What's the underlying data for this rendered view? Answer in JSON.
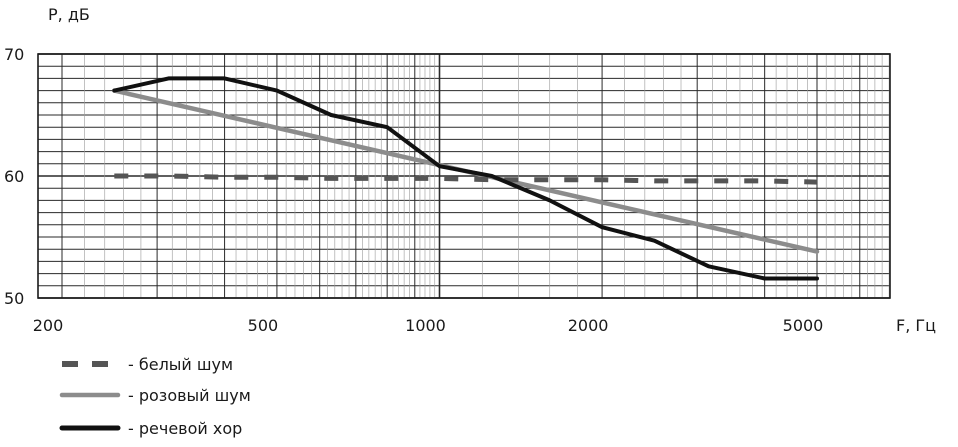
{
  "chart_data": {
    "type": "line",
    "xscale": "log",
    "xlim": [
      200,
      7000
    ],
    "ylim": [
      50,
      70
    ],
    "grid": true,
    "legend_position": "bottom-left",
    "ylabel": "P, дБ",
    "xlabel": "F, Гц",
    "y_ticks": [
      {
        "value": 50,
        "label": "50"
      },
      {
        "value": 60,
        "label": "60"
      },
      {
        "value": 70,
        "label": "70"
      }
    ],
    "x_ticks": [
      {
        "value": 200,
        "label": "200"
      },
      {
        "value": 500,
        "label": "500"
      },
      {
        "value": 1000,
        "label": "1000"
      },
      {
        "value": 2000,
        "label": "2000"
      },
      {
        "value": 5000,
        "label": "5000"
      }
    ],
    "series": [
      {
        "name": "белый шум",
        "legend_label": "- белый шум",
        "style": "dashed",
        "color": "#555555",
        "x": [
          250,
          315,
          400,
          500,
          630,
          800,
          1000,
          1250,
          1600,
          2000,
          2500,
          3150,
          4000,
          5000
        ],
        "y": [
          60,
          60,
          59.9,
          59.9,
          59.8,
          59.8,
          59.8,
          59.7,
          59.7,
          59.7,
          59.6,
          59.6,
          59.6,
          59.5
        ]
      },
      {
        "name": "розовый шум",
        "legend_label": "- розовый шум",
        "style": "solid",
        "color": "#8c8c8c",
        "x": [
          250,
          5000
        ],
        "y": [
          67,
          53.8
        ]
      },
      {
        "name": "речевой хор",
        "legend_label": "- речевой хор",
        "style": "solid",
        "color": "#111111",
        "x": [
          250,
          315,
          400,
          500,
          630,
          800,
          1000,
          1250,
          1600,
          2000,
          2500,
          3150,
          4000,
          5000
        ],
        "y": [
          67,
          68,
          68,
          67,
          65,
          64,
          60.8,
          60,
          58,
          55.8,
          54.7,
          52.6,
          51.6,
          51.6
        ]
      }
    ]
  }
}
